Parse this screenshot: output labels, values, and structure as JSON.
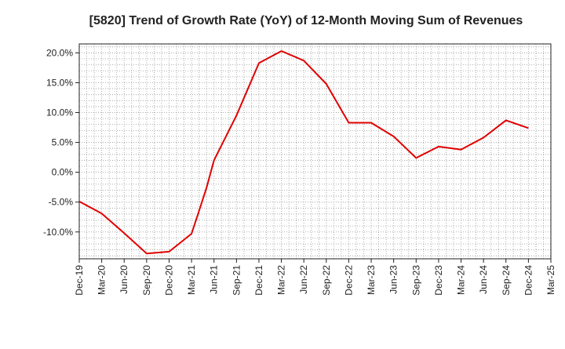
{
  "chart_data": {
    "type": "line",
    "title": "[5820]  Trend of Growth Rate (YoY) of 12-Month Moving Sum of Revenues",
    "xlabel": "",
    "ylabel": "",
    "ylim": [
      -14.5,
      21.5
    ],
    "yticks": [
      20,
      15,
      10,
      5,
      0,
      -5,
      -10
    ],
    "ytick_labels": [
      "20.0%",
      "15.0%",
      "10.0%",
      "5.0%",
      "0.0%",
      "-5.0%",
      "-10.0%"
    ],
    "x_ticks": [
      "Dec-19",
      "Mar-20",
      "Jun-20",
      "Sep-20",
      "Dec-20",
      "Mar-21",
      "Jun-21",
      "Sep-21",
      "Dec-21",
      "Mar-22",
      "Jun-22",
      "Sep-22",
      "Dec-22",
      "Mar-23",
      "Jun-23",
      "Sep-23",
      "Dec-23",
      "Mar-24",
      "Jun-24",
      "Sep-24",
      "Dec-24",
      "Mar-25"
    ],
    "grid": true,
    "series": [
      {
        "color": "#e00000",
        "points": [
          {
            "x": "Dec-19",
            "y": -4.9
          },
          {
            "x": "Mar-20",
            "y": -6.9
          },
          {
            "x": "Jun-20",
            "y": -10.2
          },
          {
            "x": "Sep-20",
            "y": -13.6
          },
          {
            "x": "Dec-20",
            "y": -13.3
          },
          {
            "x": "Mar-21",
            "y": -10.3
          },
          {
            "x": "Apr-21",
            "y": -6.5
          },
          {
            "x": "May-21",
            "y": -2.6
          },
          {
            "x": "Jun-21",
            "y": 2.0
          },
          {
            "x": "Sep-21",
            "y": 9.5
          },
          {
            "x": "Dec-21",
            "y": 18.3
          },
          {
            "x": "Mar-22",
            "y": 20.3
          },
          {
            "x": "Jun-22",
            "y": 18.7
          },
          {
            "x": "Sep-22",
            "y": 14.8
          },
          {
            "x": "Dec-22",
            "y": 8.3
          },
          {
            "x": "Mar-23",
            "y": 8.3
          },
          {
            "x": "Jun-23",
            "y": 6.0
          },
          {
            "x": "Sep-23",
            "y": 2.4
          },
          {
            "x": "Dec-23",
            "y": 4.3
          },
          {
            "x": "Mar-24",
            "y": 3.8
          },
          {
            "x": "Jun-24",
            "y": 5.8
          },
          {
            "x": "Sep-24",
            "y": 8.7
          },
          {
            "x": "Dec-24",
            "y": 7.4
          }
        ]
      }
    ]
  }
}
